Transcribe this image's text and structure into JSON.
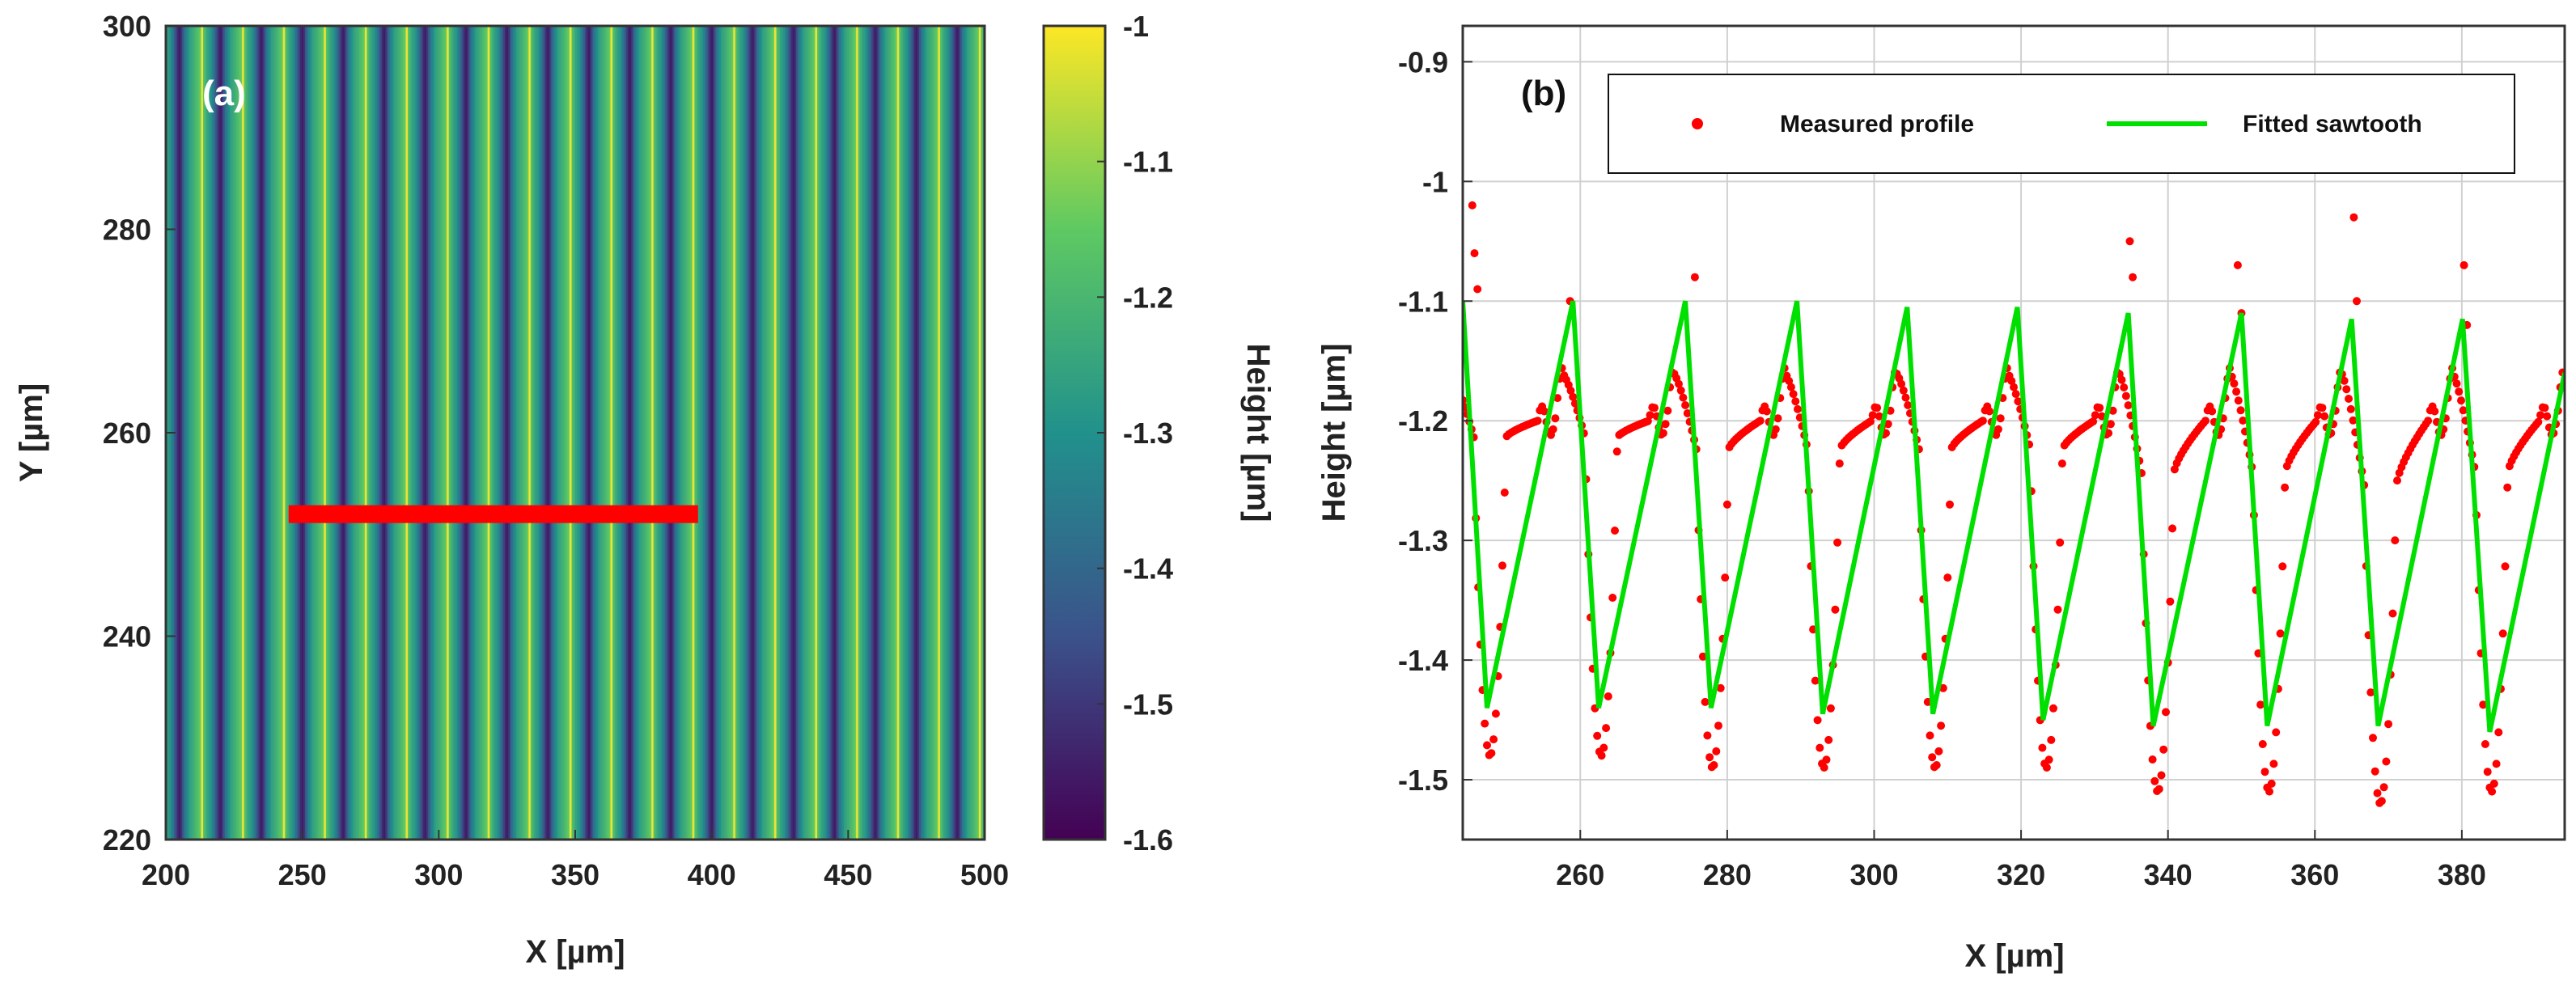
{
  "chart_data": [
    {
      "type": "heatmap",
      "panel_label": "(a)",
      "xlabel": "X [µm]",
      "ylabel": "Y [µm]",
      "xlim": [
        200,
        500
      ],
      "ylim": [
        220,
        300
      ],
      "xticks": [
        200,
        250,
        300,
        350,
        400,
        450,
        500
      ],
      "yticks": [
        220,
        240,
        260,
        280,
        300
      ],
      "stripe_period_um": 15,
      "stripe_start_um": 200,
      "colorbar": {
        "label": "Height [µm]",
        "range": [
          -1.6,
          -1.0
        ],
        "ticks": [
          -1,
          -1.1,
          -1.2,
          -1.3,
          -1.4,
          -1.5,
          -1.6
        ],
        "colormap": [
          "#440154",
          "#3b528b",
          "#21918c",
          "#5ec962",
          "#fde725"
        ]
      },
      "profile_line": {
        "x": [
          245,
          395
        ],
        "y": 252,
        "color": "#ff0000"
      }
    },
    {
      "type": "line",
      "panel_label": "(b)",
      "xlabel": "X [µm]",
      "ylabel": "Height [µm]",
      "xlim": [
        244,
        394
      ],
      "ylim": [
        -1.55,
        -0.87
      ],
      "xticks": [
        260,
        280,
        300,
        320,
        340,
        360,
        380
      ],
      "yticks": [
        -0.9,
        -1,
        -1.1,
        -1.2,
        -1.3,
        -1.4,
        -1.5
      ],
      "grid": true,
      "legend": {
        "position": "top-right"
      },
      "series": [
        {
          "name": "Measured profile",
          "kind": "scatter",
          "color": "#ff0000",
          "period": 15.15,
          "first_valley_x": 247.7,
          "valley_min": [
            -1.48,
            -1.48,
            -1.49,
            -1.49,
            -1.49,
            -1.49,
            -1.51,
            -1.51,
            -1.52,
            -1.51
          ],
          "plateau": -1.2,
          "ridge_peak": -1.16,
          "spikes": [
            {
              "x": 245.3,
              "y": -1.02
            },
            {
              "x": 245.6,
              "y": -1.06
            },
            {
              "x": 246.0,
              "y": -1.09
            },
            {
              "x": 258.6,
              "y": -1.1
            },
            {
              "x": 275.6,
              "y": -1.08
            },
            {
              "x": 334.8,
              "y": -1.05
            },
            {
              "x": 335.2,
              "y": -1.08
            },
            {
              "x": 349.5,
              "y": -1.07
            },
            {
              "x": 350.0,
              "y": -1.11
            },
            {
              "x": 365.3,
              "y": -1.03
            },
            {
              "x": 365.7,
              "y": -1.1
            },
            {
              "x": 380.3,
              "y": -1.07
            },
            {
              "x": 380.7,
              "y": -1.12
            }
          ]
        },
        {
          "name": "Fitted sawtooth",
          "kind": "line",
          "color": "#00e000",
          "x": [
            244,
            247.3,
            259.0,
            262.5,
            274.3,
            277.8,
            289.5,
            293.0,
            304.5,
            308.0,
            319.5,
            323.0,
            334.6,
            338.0,
            350.0,
            353.5,
            365.0,
            368.6,
            380.1,
            383.8,
            394
          ],
          "y": [
            -1.1,
            -1.44,
            -1.1,
            -1.44,
            -1.1,
            -1.44,
            -1.1,
            -1.445,
            -1.105,
            -1.445,
            -1.105,
            -1.45,
            -1.11,
            -1.455,
            -1.11,
            -1.455,
            -1.115,
            -1.455,
            -1.115,
            -1.46,
            -1.16
          ]
        }
      ]
    }
  ]
}
